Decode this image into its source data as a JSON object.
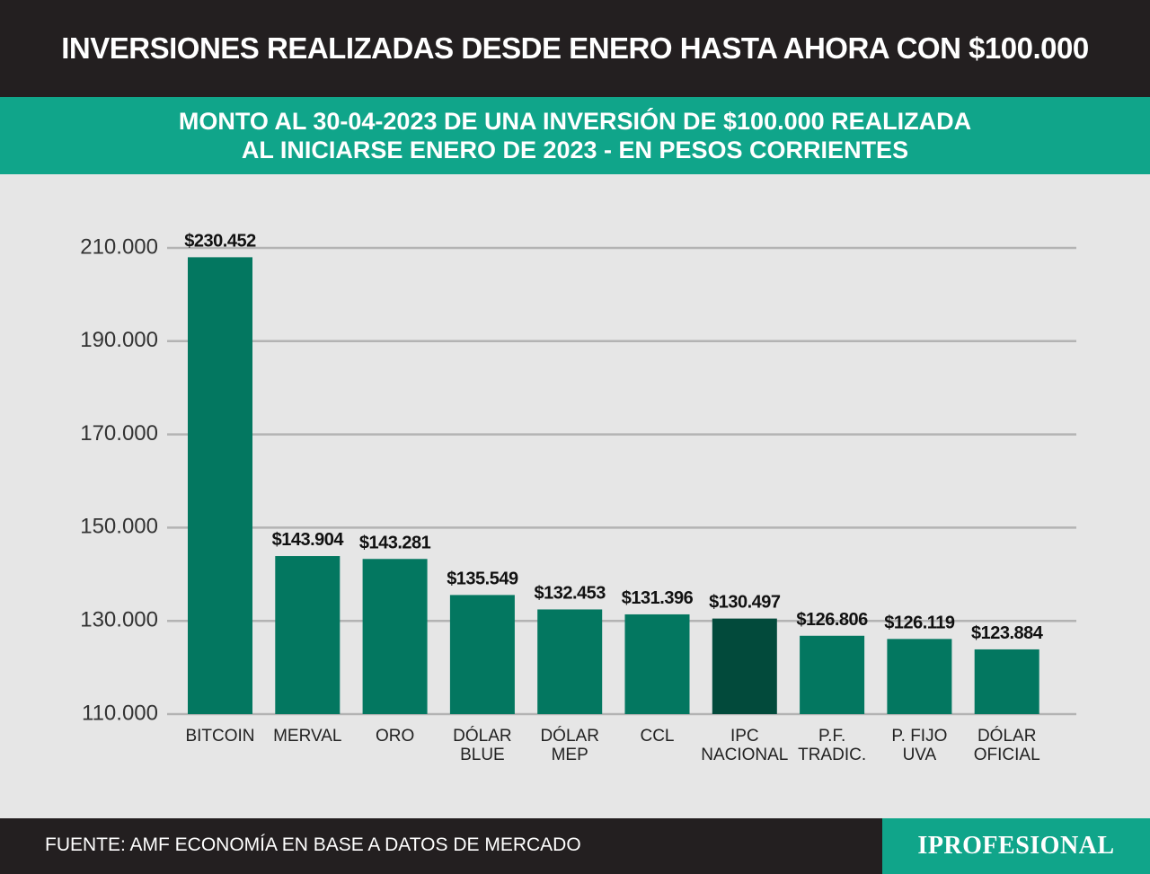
{
  "header": {
    "title": "INVERSIONES REALIZADAS DESDE ENERO HASTA AHORA CON $100.000",
    "subtitle_line1": "MONTO AL 30-04-2023 DE UNA INVERSIÓN DE $100.000 REALIZADA",
    "subtitle_line2": "AL INICIARSE ENERO DE 2023 - EN PESOS CORRIENTES"
  },
  "footer": {
    "source": "FUENTE: AMF ECONOMÍA EN BASE A DATOS DE MERCADO",
    "brand": "IPROFESIONAL"
  },
  "colors": {
    "bar": "#037760",
    "bar_highlight": "#024a3b",
    "grid": "#b3b3b3",
    "header_bg": "#231f20",
    "accent": "#10a58a",
    "plot_bg": "#e6e6e6"
  },
  "chart_data": {
    "type": "bar",
    "categories": [
      [
        "BITCOIN"
      ],
      [
        "MERVAL"
      ],
      [
        "ORO"
      ],
      [
        "DÓLAR",
        "BLUE"
      ],
      [
        "DÓLAR",
        "MEP"
      ],
      [
        "CCL"
      ],
      [
        "IPC",
        "NACIONAL"
      ],
      [
        "P.F.",
        "TRADIC."
      ],
      [
        "P. FIJO",
        "UVA"
      ],
      [
        "DÓLAR",
        "OFICIAL"
      ]
    ],
    "values": [
      230452,
      143904,
      143281,
      135549,
      132453,
      131396,
      130497,
      126806,
      126119,
      123884
    ],
    "value_labels": [
      "$230.452",
      "$143.904",
      "$143.281",
      "$135.549",
      "$132.453",
      "$131.396",
      "$130.497",
      "$126.806",
      "$126.119",
      "$123.884"
    ],
    "highlight_index": 6,
    "ylim": [
      110000,
      210000
    ],
    "yticks": [
      110000,
      130000,
      150000,
      170000,
      190000,
      210000
    ],
    "ytick_labels": [
      "110.000",
      "130.000",
      "150.000",
      "170.000",
      "190.000",
      "210.000"
    ],
    "grid": true,
    "legend": false
  }
}
